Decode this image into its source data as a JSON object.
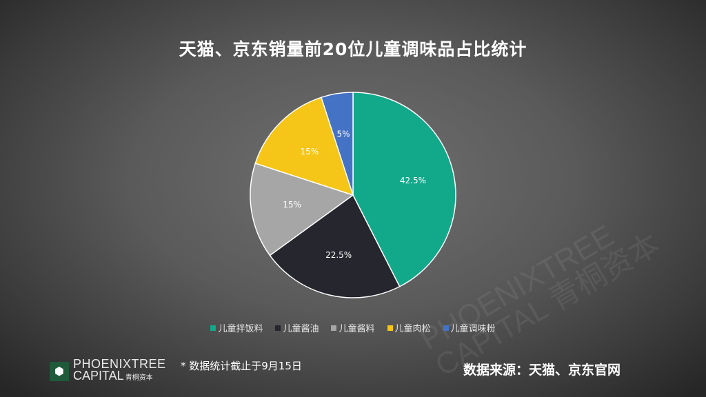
{
  "chart_data": {
    "type": "pie",
    "title": "天猫、京东销量前20位儿童调味品占比统计",
    "categories": [
      "儿童拌饭料",
      "儿童酱油",
      "儿童酱料",
      "儿童肉松",
      "儿童调味粉"
    ],
    "values": [
      42.5,
      22.5,
      15,
      15,
      5
    ],
    "labels": [
      "42.5%",
      "22.5%",
      "15%",
      "15%",
      "5%"
    ],
    "colors": [
      "#12a88a",
      "#25262e",
      "#a6a6a6",
      "#f5c518",
      "#4472c4"
    ],
    "start": "top",
    "direction": "clockwise",
    "legend_position": "bottom"
  },
  "footer": {
    "note": "* 数据统计截止于9月15日",
    "source": "数据来源：天猫、京东官网"
  },
  "logo": {
    "line1": "PHOENIXTREE",
    "line2": "CAPITAL",
    "cn": "青桐资本"
  },
  "watermark": {
    "line1": "PHOENIXTREE",
    "line2": "CAPITAL 青桐资本"
  }
}
